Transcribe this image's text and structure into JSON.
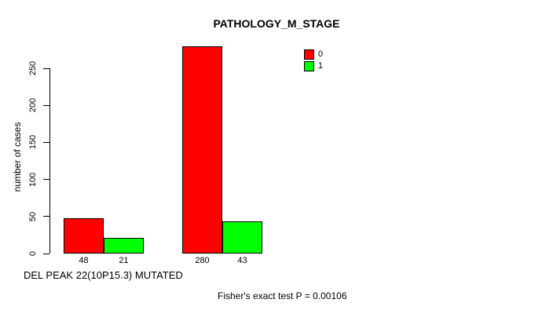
{
  "chart_data": {
    "type": "bar",
    "title": "PATHOLOGY_M_STAGE",
    "ylabel": "number of cases",
    "xlabel": "DEL PEAK 22(10P15.3) MUTATED",
    "annotation": "Fisher's exact test P = 0.00106",
    "series": [
      {
        "name": "0",
        "color": "#ff0000",
        "values": [
          48,
          280
        ]
      },
      {
        "name": "1",
        "color": "#00ff00",
        "values": [
          21,
          43
        ]
      }
    ],
    "bar_labels": [
      "48",
      "21",
      "280",
      "43"
    ],
    "yticks": [
      0,
      50,
      100,
      150,
      200,
      250
    ],
    "ylim": [
      0,
      280
    ],
    "grid": false,
    "bar_border_color": "#000000",
    "legend": {
      "position": "top-right",
      "entries": [
        {
          "label": "0",
          "color": "#ff0000"
        },
        {
          "label": "1",
          "color": "#00ff00"
        }
      ]
    }
  }
}
